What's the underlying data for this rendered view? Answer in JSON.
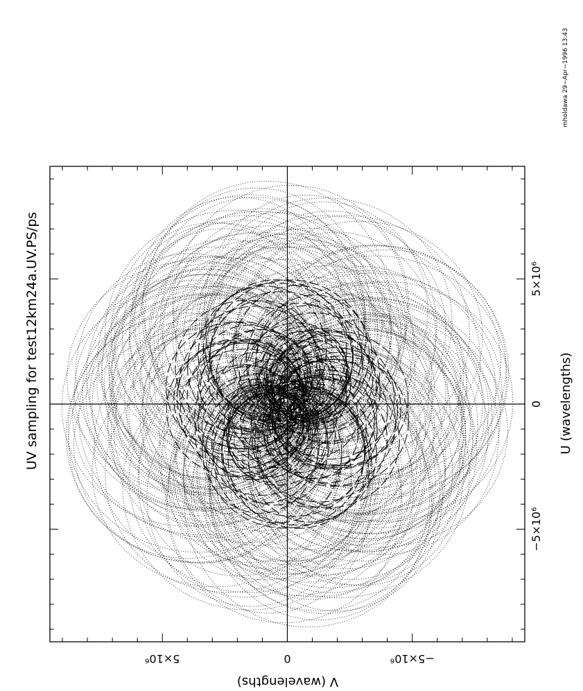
{
  "chart_data": {
    "type": "scatter",
    "title": "UV sampling for test12km24a.UV.PS/ps",
    "xlabel": "U (wavelengths)",
    "ylabel": "V (wavelengths)",
    "xlim": [
      -9500000,
      9500000
    ],
    "ylim": [
      -9500000,
      9500000
    ],
    "x_ticks": [
      {
        "value": -5000000,
        "label": "−5×10⁶"
      },
      {
        "value": 0,
        "label": "0"
      },
      {
        "value": 5000000,
        "label": "5×10⁶"
      }
    ],
    "y_ticks": [
      {
        "value": -5000000,
        "label": "−5×10⁶"
      },
      {
        "value": 0,
        "label": "0"
      },
      {
        "value": 5000000,
        "label": "5×10⁶"
      }
    ],
    "origin_axes": true,
    "grid": false,
    "orientation": "rotated-90-ccw",
    "inner_dashed_radius_max": 5200000,
    "outer_dotted_radius_max": 9100000,
    "color": "#000000"
  },
  "footer": {
    "stamp": "mholdawa 29−Apr−1996 13:43"
  }
}
